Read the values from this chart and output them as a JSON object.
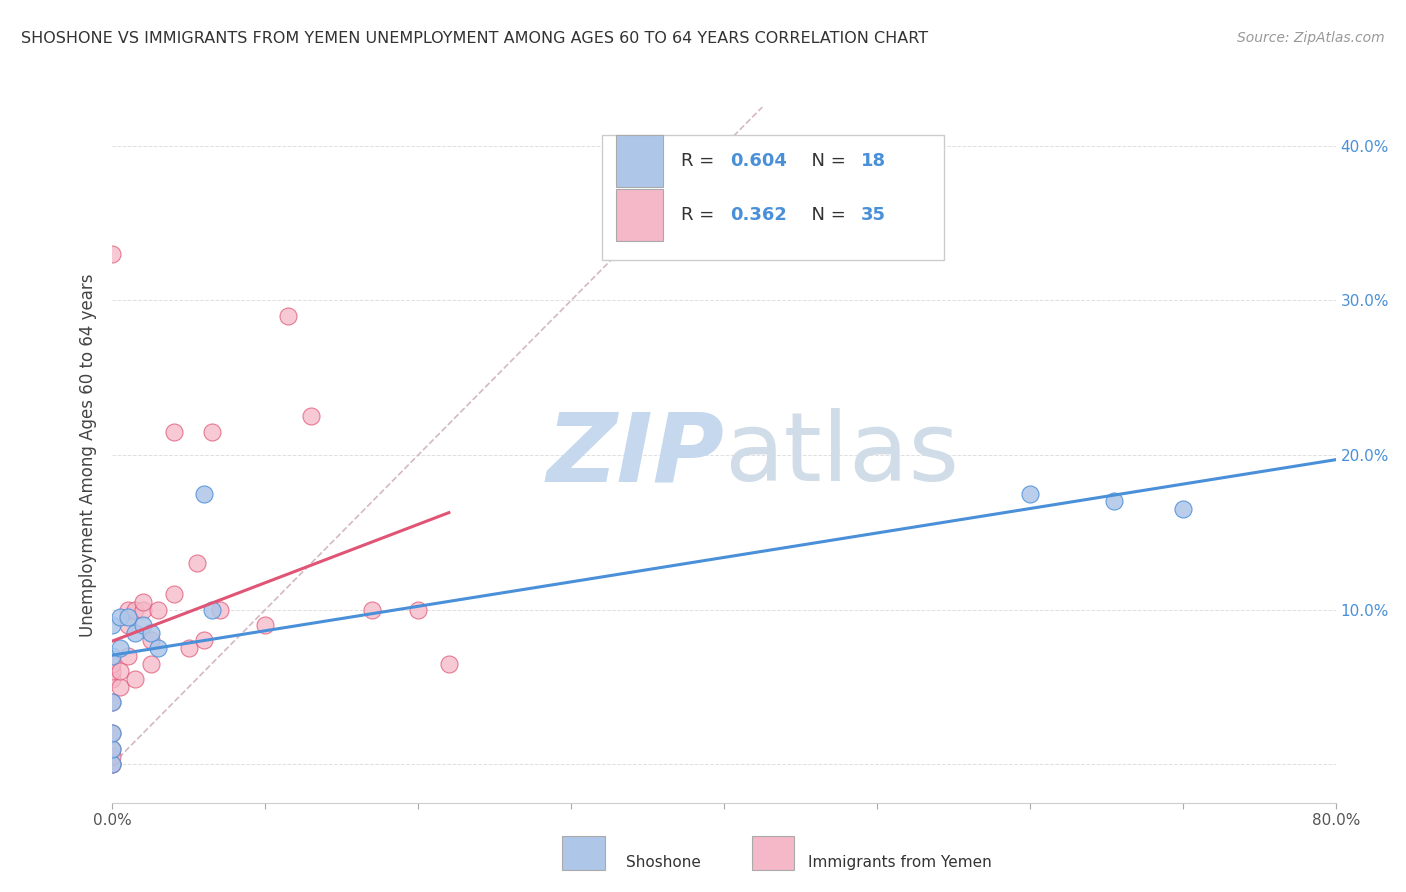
{
  "title": "SHOSHONE VS IMMIGRANTS FROM YEMEN UNEMPLOYMENT AMONG AGES 60 TO 64 YEARS CORRELATION CHART",
  "source": "Source: ZipAtlas.com",
  "ylabel": "Unemployment Among Ages 60 to 64 years",
  "legend1_R": "0.604",
  "legend1_N": "18",
  "legend2_R": "0.362",
  "legend2_N": "35",
  "legend1_label": "Shoshone",
  "legend2_label": "Immigrants from Yemen",
  "blue_fill_color": "#aec6e8",
  "pink_fill_color": "#f4b8c8",
  "blue_line_color": "#4a90d9",
  "pink_line_color": "#e05575",
  "diag_line_color": "#d4b8c4",
  "xlim": [
    0.0,
    0.8
  ],
  "ylim": [
    -0.025,
    0.425
  ],
  "ytick_positions": [
    0.0,
    0.1,
    0.2,
    0.3,
    0.4
  ],
  "ytick_labels_right": [
    "",
    "10.0%",
    "20.0%",
    "30.0%",
    "40.0%"
  ],
  "xtick_positions": [
    0.0,
    0.1,
    0.2,
    0.3,
    0.4,
    0.5,
    0.6,
    0.7,
    0.8
  ],
  "xtick_labels": [
    "0.0%",
    "",
    "",
    "",
    "",
    "",
    "",
    "",
    "80.0%"
  ],
  "shoshone_x": [
    0.0,
    0.0,
    0.0,
    0.0,
    0.0,
    0.0,
    0.005,
    0.005,
    0.01,
    0.015,
    0.02,
    0.025,
    0.03,
    0.06,
    0.065,
    0.6,
    0.655,
    0.7
  ],
  "shoshone_y": [
    0.0,
    0.01,
    0.02,
    0.04,
    0.07,
    0.09,
    0.075,
    0.095,
    0.095,
    0.085,
    0.09,
    0.085,
    0.075,
    0.175,
    0.1,
    0.175,
    0.17,
    0.165
  ],
  "yemen_x": [
    0.0,
    0.0,
    0.0,
    0.0,
    0.0,
    0.0,
    0.0,
    0.0,
    0.0,
    0.0,
    0.005,
    0.005,
    0.01,
    0.01,
    0.01,
    0.015,
    0.015,
    0.02,
    0.02,
    0.025,
    0.025,
    0.03,
    0.04,
    0.04,
    0.05,
    0.055,
    0.06,
    0.065,
    0.07,
    0.1,
    0.115,
    0.13,
    0.17,
    0.2,
    0.22
  ],
  "yemen_y": [
    0.0,
    0.0,
    0.005,
    0.01,
    0.02,
    0.04,
    0.055,
    0.06,
    0.065,
    0.33,
    0.05,
    0.06,
    0.07,
    0.09,
    0.1,
    0.055,
    0.1,
    0.1,
    0.105,
    0.065,
    0.08,
    0.1,
    0.11,
    0.215,
    0.075,
    0.13,
    0.08,
    0.215,
    0.1,
    0.09,
    0.29,
    0.225,
    0.1,
    0.1,
    0.065
  ],
  "watermark_zip": "ZIP",
  "watermark_atlas": "atlas",
  "watermark_color_zip": "#c5d8ee",
  "watermark_color_atlas": "#c5d8ee"
}
